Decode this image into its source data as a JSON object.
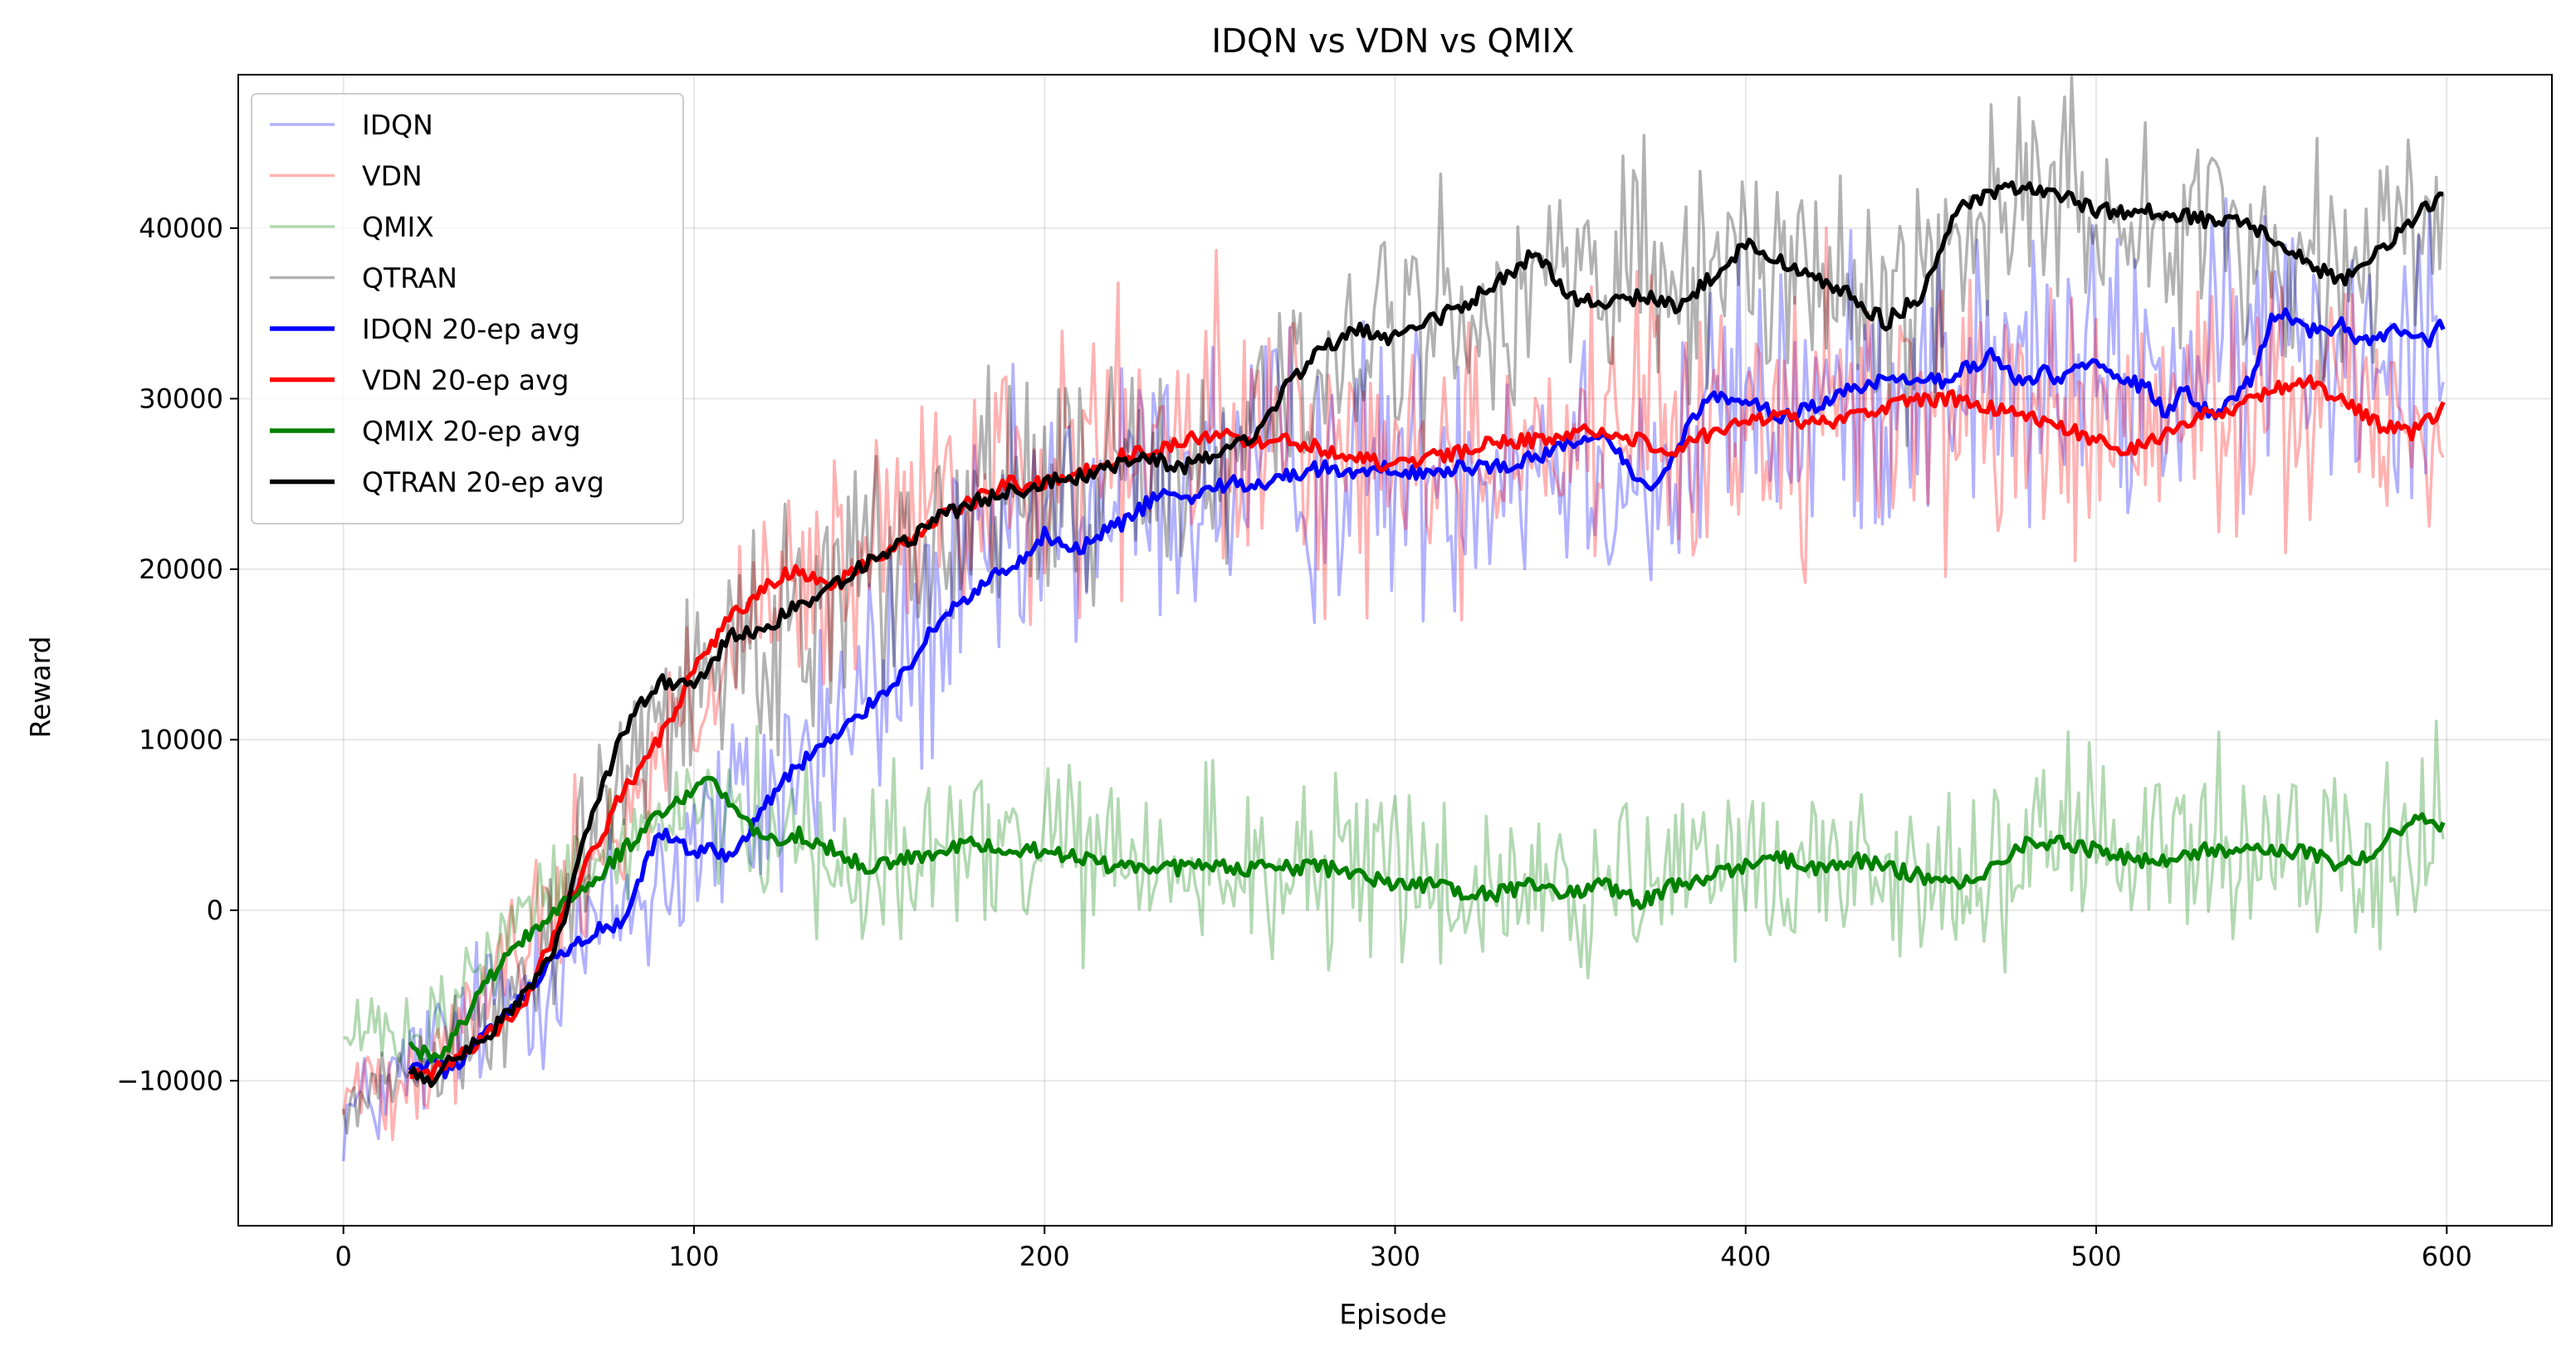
{
  "chart_data": {
    "type": "line",
    "title": "IDQN vs VDN vs QMIX",
    "xlabel": "Episode",
    "ylabel": "Reward",
    "xlim": [
      -30,
      630
    ],
    "ylim": [
      -18500,
      49000
    ],
    "xticks": [
      0,
      100,
      200,
      300,
      400,
      500,
      600
    ],
    "yticks": [
      -10000,
      0,
      10000,
      20000,
      30000,
      40000
    ],
    "grid": true,
    "legend_position": "top-left",
    "raw_episode_range": [
      0,
      599
    ],
    "avg_episode_range": [
      19,
      599
    ],
    "series": [
      {
        "name": "IDQN",
        "kind": "raw",
        "color": "#0000ff",
        "opacity": 0.3,
        "x": [
          0,
          10,
          20,
          30,
          40,
          50,
          60,
          70,
          80,
          90,
          100,
          110,
          120,
          130,
          140,
          150,
          160,
          170,
          180,
          190,
          200,
          210,
          220,
          230,
          240,
          250,
          260,
          270,
          280,
          290,
          300,
          310,
          320,
          330,
          340,
          350,
          360,
          370,
          380,
          390,
          400,
          410,
          420,
          430,
          440,
          450,
          460,
          470,
          480,
          490,
          500,
          510,
          520,
          530,
          540,
          550,
          560,
          570,
          580,
          590,
          599
        ],
        "y": [
          -12000,
          -11000,
          -9000,
          -7500,
          -6000,
          -4500,
          -3000,
          -1500,
          0,
          2000,
          4000,
          5000,
          6500,
          8500,
          10500,
          12500,
          15000,
          17000,
          19000,
          21000,
          22500,
          23000,
          24000,
          25000,
          25000,
          25500,
          25500,
          26000,
          26000,
          26000,
          26000,
          26000,
          26500,
          27000,
          27000,
          27000,
          27000,
          25500,
          25000,
          29000,
          30000,
          29500,
          29000,
          30000,
          31000,
          31500,
          31500,
          31000,
          31000,
          31500,
          31500,
          31000,
          31000,
          31500,
          32000,
          34000,
          34000,
          33500,
          34000,
          34000,
          35000
        ]
      },
      {
        "name": "VDN",
        "kind": "raw",
        "color": "#ff0000",
        "opacity": 0.3,
        "x": [
          0,
          10,
          20,
          30,
          40,
          50,
          60,
          70,
          80,
          90,
          100,
          110,
          120,
          130,
          140,
          150,
          160,
          170,
          180,
          190,
          200,
          210,
          220,
          230,
          240,
          250,
          260,
          270,
          280,
          290,
          300,
          310,
          320,
          330,
          340,
          350,
          360,
          370,
          380,
          390,
          400,
          410,
          420,
          430,
          440,
          450,
          460,
          470,
          480,
          490,
          500,
          510,
          520,
          530,
          540,
          550,
          560,
          570,
          580,
          590,
          599
        ],
        "y": [
          -11000,
          -10000,
          -9000,
          -7000,
          -5000,
          -2000,
          0,
          3000,
          6000,
          9000,
          12000,
          14500,
          16500,
          18000,
          19000,
          20500,
          21500,
          23000,
          24000,
          25000,
          25500,
          26000,
          26500,
          27000,
          27500,
          28000,
          27500,
          27500,
          27000,
          26500,
          26000,
          26500,
          27000,
          27500,
          27500,
          28000,
          28500,
          28000,
          27500,
          28000,
          29000,
          29000,
          29000,
          29500,
          30000,
          30000,
          30000,
          29500,
          29000,
          28500,
          28000,
          28000,
          28500,
          29000,
          29500,
          30500,
          30500,
          31000,
          30000,
          28500,
          29000
        ]
      },
      {
        "name": "QMIX",
        "kind": "raw",
        "color": "#008000",
        "opacity": 0.3,
        "x": [
          0,
          10,
          20,
          30,
          40,
          50,
          60,
          70,
          80,
          90,
          100,
          110,
          120,
          130,
          140,
          150,
          160,
          170,
          180,
          190,
          200,
          210,
          220,
          230,
          240,
          250,
          260,
          270,
          280,
          290,
          300,
          310,
          320,
          330,
          340,
          350,
          360,
          370,
          380,
          390,
          400,
          410,
          420,
          430,
          440,
          450,
          460,
          470,
          480,
          490,
          500,
          510,
          520,
          530,
          540,
          550,
          560,
          570,
          580,
          590,
          599
        ],
        "y": [
          -8000,
          -7000,
          -8500,
          -6000,
          -3000,
          -1000,
          1000,
          3000,
          4000,
          5500,
          7000,
          6000,
          4500,
          4000,
          3500,
          3000,
          3000,
          3500,
          4000,
          3500,
          3500,
          3000,
          2500,
          2500,
          2500,
          2000,
          2500,
          2500,
          2500,
          2000,
          2000,
          1500,
          1000,
          1000,
          1500,
          1500,
          1000,
          500,
          1500,
          2000,
          2500,
          2500,
          2500,
          2500,
          2500,
          2000,
          2000,
          2500,
          3500,
          4000,
          3500,
          3500,
          3500,
          3500,
          3500,
          3500,
          3500,
          3500,
          3000,
          4500,
          5000
        ]
      },
      {
        "name": "QTRAN",
        "kind": "raw",
        "color": "#000000",
        "opacity": 0.3,
        "x": [
          0,
          10,
          20,
          30,
          40,
          50,
          60,
          70,
          80,
          90,
          100,
          110,
          120,
          130,
          140,
          150,
          160,
          170,
          180,
          190,
          200,
          210,
          220,
          230,
          240,
          250,
          260,
          270,
          280,
          290,
          300,
          310,
          320,
          330,
          340,
          350,
          360,
          370,
          380,
          390,
          400,
          410,
          420,
          430,
          440,
          450,
          460,
          470,
          480,
          490,
          500,
          510,
          520,
          530,
          540,
          550,
          560,
          570,
          580,
          590,
          599
        ],
        "y": [
          -11000,
          -10000,
          -9500,
          -8000,
          -6500,
          -5000,
          -2000,
          4000,
          8000,
          12000,
          13500,
          15500,
          17000,
          18000,
          19500,
          20500,
          21500,
          22500,
          23500,
          24000,
          24500,
          25000,
          25500,
          26000,
          26000,
          27000,
          27500,
          29500,
          32000,
          33500,
          33500,
          34000,
          35000,
          36000,
          37500,
          38000,
          37000,
          36000,
          35500,
          37000,
          38500,
          38000,
          37000,
          36000,
          35000,
          36500,
          39500,
          41500,
          42000,
          41500,
          41000,
          41000,
          40500,
          40500,
          40000,
          39000,
          38000,
          37000,
          38500,
          40000,
          42000
        ]
      },
      {
        "name": "IDQN 20-ep avg",
        "kind": "avg",
        "color": "#0000ff",
        "x": [
          19,
          25,
          30,
          40,
          50,
          60,
          70,
          75,
          80,
          85,
          90,
          95,
          100,
          105,
          110,
          115,
          120,
          125,
          130,
          135,
          140,
          145,
          150,
          155,
          160,
          165,
          170,
          175,
          180,
          185,
          190,
          195,
          200,
          205,
          210,
          215,
          220,
          225,
          230,
          235,
          240,
          250,
          260,
          270,
          280,
          290,
          300,
          310,
          320,
          330,
          340,
          350,
          355,
          360,
          365,
          370,
          375,
          380,
          385,
          390,
          395,
          400,
          410,
          420,
          430,
          440,
          450,
          455,
          460,
          465,
          470,
          475,
          480,
          485,
          490,
          495,
          500,
          505,
          510,
          515,
          520,
          525,
          530,
          535,
          540,
          545,
          550,
          555,
          560,
          565,
          570,
          575,
          580,
          585,
          590,
          595,
          599
        ],
        "y": [
          -9500,
          -9000,
          -9500,
          -7500,
          -5500,
          -3000,
          -1500,
          -1000,
          -1000,
          2000,
          4500,
          4000,
          3500,
          3500,
          3000,
          4500,
          6000,
          7500,
          8500,
          9500,
          10000,
          11000,
          12000,
          13000,
          14000,
          15500,
          17000,
          18000,
          18500,
          19500,
          20000,
          20500,
          22000,
          21500,
          21000,
          22000,
          22500,
          23000,
          24000,
          24500,
          24000,
          25000,
          25000,
          25500,
          26000,
          25500,
          26000,
          25500,
          26000,
          26000,
          26500,
          27500,
          27500,
          27500,
          26500,
          25000,
          25000,
          27000,
          29000,
          30000,
          30000,
          30000,
          29000,
          29500,
          30500,
          31000,
          31000,
          31000,
          31500,
          32000,
          32500,
          31500,
          31000,
          31500,
          31000,
          32000,
          32500,
          31500,
          31000,
          30500,
          29000,
          30500,
          29500,
          29000,
          30000,
          31500,
          34500,
          35000,
          34000,
          34000,
          34500,
          33500,
          33500,
          34000,
          34000,
          33500,
          34500
        ]
      },
      {
        "name": "VDN 20-ep avg",
        "kind": "avg",
        "color": "#ff0000",
        "x": [
          19,
          25,
          30,
          40,
          50,
          60,
          70,
          80,
          90,
          100,
          110,
          120,
          130,
          140,
          150,
          160,
          170,
          180,
          190,
          200,
          210,
          220,
          230,
          240,
          250,
          260,
          270,
          280,
          290,
          300,
          310,
          320,
          330,
          340,
          350,
          360,
          370,
          380,
          390,
          400,
          410,
          420,
          430,
          440,
          450,
          460,
          470,
          480,
          490,
          500,
          510,
          520,
          530,
          540,
          550,
          560,
          570,
          580,
          590,
          599
        ],
        "y": [
          -9500,
          -9500,
          -9000,
          -7500,
          -6000,
          -1500,
          3000,
          7000,
          10000,
          14000,
          17000,
          19000,
          20000,
          19000,
          20500,
          21500,
          23000,
          24000,
          25000,
          25000,
          25500,
          26500,
          27000,
          27500,
          28000,
          27500,
          27500,
          27000,
          26500,
          26000,
          26500,
          27000,
          27500,
          27500,
          28000,
          28000,
          27500,
          27000,
          28000,
          28500,
          29000,
          28500,
          29000,
          29500,
          30000,
          30000,
          29500,
          29000,
          28500,
          27500,
          27000,
          28000,
          29000,
          29500,
          30500,
          31000,
          30000,
          28500,
          28000,
          29500
        ]
      },
      {
        "name": "QMIX 20-ep avg",
        "kind": "avg",
        "color": "#008000",
        "x": [
          19,
          25,
          30,
          40,
          50,
          60,
          70,
          80,
          90,
          100,
          105,
          110,
          115,
          120,
          130,
          140,
          150,
          160,
          170,
          180,
          190,
          200,
          210,
          220,
          230,
          240,
          250,
          260,
          270,
          280,
          290,
          300,
          310,
          320,
          330,
          340,
          350,
          360,
          370,
          380,
          390,
          400,
          410,
          420,
          430,
          440,
          450,
          460,
          470,
          480,
          490,
          500,
          510,
          520,
          530,
          540,
          550,
          560,
          570,
          580,
          590,
          599
        ],
        "y": [
          -8000,
          -8500,
          -8000,
          -4500,
          -2000,
          0,
          1500,
          3500,
          5500,
          7000,
          7500,
          6500,
          5000,
          4000,
          4500,
          3500,
          2500,
          3000,
          3500,
          4000,
          3500,
          3500,
          3000,
          2500,
          2500,
          2500,
          2500,
          2500,
          2500,
          2500,
          2000,
          1500,
          1500,
          1000,
          1000,
          1500,
          1000,
          1500,
          500,
          1500,
          2000,
          2500,
          3000,
          2500,
          3000,
          2500,
          2000,
          1500,
          2500,
          4000,
          4000,
          3500,
          3000,
          3000,
          3500,
          3500,
          3500,
          3500,
          2500,
          3500,
          5500,
          5000
        ]
      },
      {
        "name": "QTRAN 20-ep avg",
        "kind": "avg",
        "color": "#000000",
        "x": [
          19,
          25,
          30,
          40,
          50,
          60,
          70,
          80,
          90,
          100,
          110,
          120,
          130,
          140,
          150,
          160,
          170,
          180,
          190,
          200,
          210,
          220,
          230,
          240,
          250,
          260,
          270,
          280,
          290,
          300,
          310,
          320,
          330,
          340,
          350,
          360,
          370,
          380,
          390,
          400,
          410,
          420,
          430,
          440,
          450,
          460,
          470,
          480,
          490,
          500,
          510,
          520,
          530,
          540,
          550,
          560,
          570,
          580,
          590,
          599
        ],
        "y": [
          -9500,
          -10000,
          -9000,
          -7500,
          -5500,
          -2500,
          5000,
          10500,
          13500,
          13000,
          16000,
          16500,
          18000,
          19000,
          20500,
          21500,
          23000,
          24000,
          24500,
          25000,
          25500,
          26000,
          26500,
          26000,
          27000,
          27500,
          31000,
          33000,
          34000,
          33500,
          34500,
          35500,
          37000,
          38500,
          36000,
          35500,
          36000,
          35500,
          37000,
          39000,
          38000,
          37000,
          36000,
          34500,
          36000,
          41000,
          42000,
          42500,
          42000,
          41000,
          41000,
          41000,
          40500,
          40500,
          39500,
          38000,
          37000,
          38500,
          40500,
          42000
        ]
      }
    ]
  }
}
